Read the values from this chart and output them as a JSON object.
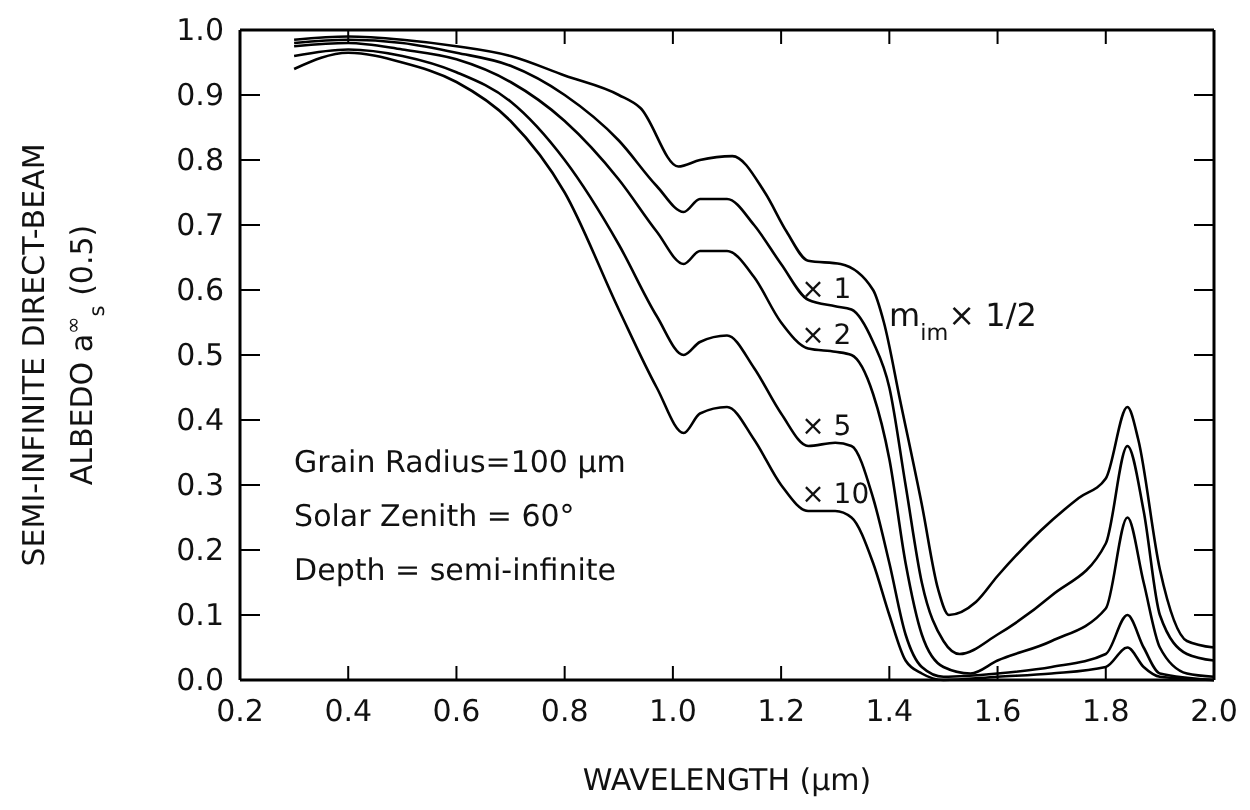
{
  "chart_data": {
    "type": "line",
    "xlabel": "WAVELENGTH (μm)",
    "ylabel": "SEMI-INFINITE DIRECT-BEAM\nALBEDO a$^{∞}$$_{s}$ (0.5)",
    "xlim": [
      0.2,
      2.0
    ],
    "ylim": [
      0.0,
      1.0
    ],
    "xticks": [
      0.2,
      0.4,
      0.6,
      0.8,
      {
        "value": 1.0,
        "label": "1.0"
      },
      1.2,
      1.4,
      1.6,
      1.8,
      {
        "value": 2.0,
        "label": "2.0"
      }
    ],
    "yticks": [
      {
        "value": 0.0,
        "label": "0.0"
      },
      0.1,
      0.2,
      0.3,
      0.4,
      0.5,
      0.6,
      0.7,
      0.8,
      0.9,
      {
        "value": 1.0,
        "label": "1.0"
      }
    ],
    "grid": false,
    "legend": false,
    "marker": "none",
    "line_style": "solid",
    "series": [
      {
        "name": "m$_{im}$× 1/2",
        "color": "#000000",
        "x": [
          0.3,
          0.4,
          0.5,
          0.6,
          0.7,
          0.8,
          0.9,
          0.94,
          1.01,
          1.05,
          1.11,
          1.17,
          1.21,
          1.25,
          1.31,
          1.37,
          1.39,
          1.42,
          1.46,
          1.49,
          1.51,
          1.56,
          1.6,
          1.68,
          1.75,
          1.8,
          1.84,
          1.86,
          1.9,
          1.95,
          2.0
        ],
        "values": [
          0.985,
          0.99,
          0.985,
          0.975,
          0.96,
          0.93,
          0.9,
          0.88,
          0.79,
          0.8,
          0.806,
          0.75,
          0.69,
          0.645,
          0.64,
          0.6,
          0.55,
          0.43,
          0.27,
          0.14,
          0.1,
          0.12,
          0.16,
          0.23,
          0.28,
          0.31,
          0.42,
          0.37,
          0.17,
          0.06,
          0.05
        ]
      },
      {
        "name": "× 1",
        "color": "#000000",
        "x": [
          0.3,
          0.4,
          0.5,
          0.6,
          0.7,
          0.8,
          0.9,
          0.97,
          1.02,
          1.05,
          1.1,
          1.15,
          1.2,
          1.25,
          1.3,
          1.33,
          1.37,
          1.4,
          1.43,
          1.46,
          1.5,
          1.53,
          1.6,
          1.7,
          1.8,
          1.84,
          1.87,
          1.9,
          1.95,
          2.0
        ],
        "values": [
          0.98,
          0.985,
          0.98,
          0.965,
          0.945,
          0.9,
          0.83,
          0.76,
          0.72,
          0.74,
          0.74,
          0.7,
          0.64,
          0.585,
          0.575,
          0.57,
          0.52,
          0.45,
          0.3,
          0.15,
          0.06,
          0.04,
          0.07,
          0.13,
          0.21,
          0.36,
          0.26,
          0.1,
          0.04,
          0.03
        ]
      },
      {
        "name": "× 2",
        "color": "#000000",
        "x": [
          0.3,
          0.4,
          0.5,
          0.6,
          0.7,
          0.8,
          0.9,
          0.97,
          1.02,
          1.05,
          1.1,
          1.15,
          1.2,
          1.25,
          1.3,
          1.33,
          1.37,
          1.4,
          1.43,
          1.46,
          1.5,
          1.55,
          1.6,
          1.7,
          1.8,
          1.84,
          1.87,
          1.9,
          1.95,
          2.0
        ],
        "values": [
          0.975,
          0.98,
          0.97,
          0.955,
          0.92,
          0.86,
          0.77,
          0.69,
          0.64,
          0.66,
          0.66,
          0.62,
          0.55,
          0.51,
          0.505,
          0.5,
          0.44,
          0.34,
          0.18,
          0.07,
          0.02,
          0.01,
          0.03,
          0.06,
          0.11,
          0.25,
          0.15,
          0.05,
          0.01,
          0.005
        ]
      },
      {
        "name": "× 5",
        "color": "#000000",
        "x": [
          0.3,
          0.4,
          0.5,
          0.6,
          0.7,
          0.8,
          0.9,
          0.97,
          1.02,
          1.05,
          1.1,
          1.15,
          1.2,
          1.25,
          1.3,
          1.33,
          1.37,
          1.4,
          1.43,
          1.46,
          1.5,
          1.6,
          1.7,
          1.8,
          1.84,
          1.87,
          1.9,
          2.0
        ],
        "values": [
          0.96,
          0.97,
          0.96,
          0.935,
          0.89,
          0.8,
          0.67,
          0.56,
          0.5,
          0.52,
          0.53,
          0.48,
          0.41,
          0.36,
          0.365,
          0.36,
          0.28,
          0.18,
          0.07,
          0.02,
          0.005,
          0.01,
          0.02,
          0.04,
          0.1,
          0.05,
          0.01,
          0.0
        ]
      },
      {
        "name": "× 10",
        "color": "#000000",
        "x": [
          0.3,
          0.4,
          0.5,
          0.6,
          0.7,
          0.8,
          0.9,
          0.97,
          1.02,
          1.05,
          1.1,
          1.15,
          1.2,
          1.25,
          1.3,
          1.33,
          1.37,
          1.4,
          1.43,
          1.46,
          1.5,
          1.6,
          1.7,
          1.8,
          1.84,
          1.87,
          1.9,
          2.0
        ],
        "values": [
          0.94,
          0.965,
          0.95,
          0.92,
          0.86,
          0.75,
          0.57,
          0.45,
          0.38,
          0.41,
          0.42,
          0.37,
          0.3,
          0.26,
          0.26,
          0.25,
          0.18,
          0.1,
          0.03,
          0.01,
          0.0,
          0.005,
          0.01,
          0.02,
          0.05,
          0.02,
          0.005,
          0.0
        ]
      }
    ],
    "annotations": [
      "Grain Radius=100 μm",
      "Solar Zenith = 60°",
      "Depth = semi-infinite"
    ]
  }
}
